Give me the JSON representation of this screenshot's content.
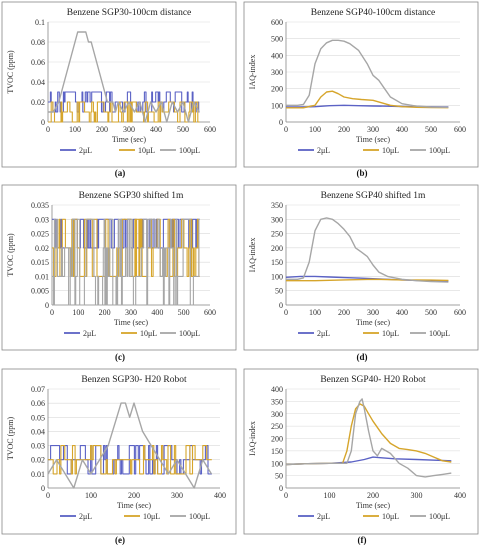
{
  "chart_data": [
    {
      "type": "line",
      "caption": "(a)",
      "title": "Benzene SGP30-100cm distance",
      "xlabel": "Time (sec)",
      "ylabel": "TVOC (ppm)",
      "xlim": [
        0,
        600
      ],
      "ylim": [
        0,
        0.1
      ],
      "xticks": [
        0,
        100,
        200,
        300,
        400,
        500,
        600
      ],
      "yticks": [
        0,
        0.02,
        0.04,
        0.06,
        0.08,
        0.1
      ],
      "ytick_labels": [
        "0",
        "0.02",
        "0.04",
        "0.06",
        "0.08",
        "0.1"
      ],
      "legend_position": "bottom",
      "series": [
        {
          "name": "2μL",
          "color": "#5b62c5",
          "noise": true,
          "x_start": 0,
          "x_end": 560,
          "levels": [
            0.02,
            0.01,
            0.03
          ],
          "seed": 11,
          "x": [
            0,
            560
          ],
          "y": [
            0.02,
            0.02
          ]
        },
        {
          "name": "10μL",
          "color": "#d6a52b",
          "noise": true,
          "x_start": 0,
          "x_end": 560,
          "levels": [
            0.01,
            0.02,
            0
          ],
          "seed": 23,
          "x": [
            0,
            560
          ],
          "y": [
            0.015,
            0.015
          ]
        },
        {
          "name": "100μL",
          "color": "#a6a6a6",
          "noise": false,
          "x": [
            0,
            20,
            40,
            60,
            80,
            100,
            110,
            120,
            140,
            150,
            160,
            180,
            200,
            220,
            240,
            250,
            260,
            280,
            300,
            320,
            340,
            360,
            380,
            400,
            420,
            440,
            460,
            480,
            500,
            520,
            540,
            560
          ],
          "y": [
            0.01,
            0.01,
            0.02,
            0.04,
            0.06,
            0.08,
            0.09,
            0.09,
            0.09,
            0.08,
            0.08,
            0.06,
            0.04,
            0.02,
            0.02,
            0.01,
            0.02,
            0.01,
            0.02,
            0.01,
            0.02,
            0,
            0.02,
            0.01,
            0.02,
            0,
            0.02,
            0.01,
            0.02,
            0,
            0.02,
            0.01
          ]
        }
      ]
    },
    {
      "type": "line",
      "caption": "(b)",
      "title": "Benzene SGP40-100cm distance",
      "xlabel": "Time (sec)",
      "ylabel": "IAQ-index",
      "xlim": [
        0,
        600
      ],
      "ylim": [
        0,
        600
      ],
      "xticks": [
        0,
        100,
        200,
        300,
        400,
        500,
        600
      ],
      "yticks": [
        0,
        100,
        200,
        300,
        400,
        500,
        600
      ],
      "ytick_labels": [
        "0",
        "100",
        "200",
        "300",
        "400",
        "500",
        "600"
      ],
      "legend_position": "bottom",
      "series": [
        {
          "name": "2μL",
          "color": "#5b62c5",
          "noise": false,
          "x": [
            0,
            50,
            100,
            150,
            200,
            250,
            300,
            350,
            400,
            450,
            500,
            560
          ],
          "y": [
            90,
            90,
            92,
            98,
            100,
            98,
            96,
            95,
            93,
            92,
            91,
            90
          ]
        },
        {
          "name": "10μL",
          "color": "#d6a52b",
          "noise": false,
          "x": [
            0,
            60,
            100,
            120,
            140,
            160,
            180,
            200,
            230,
            260,
            300,
            330,
            360,
            400,
            450,
            500,
            560
          ],
          "y": [
            85,
            85,
            100,
            150,
            180,
            185,
            170,
            150,
            140,
            135,
            130,
            115,
            100,
            92,
            88,
            87,
            86
          ]
        },
        {
          "name": "100μL",
          "color": "#a6a6a6",
          "noise": false,
          "x": [
            0,
            40,
            60,
            80,
            100,
            120,
            140,
            160,
            180,
            200,
            220,
            250,
            280,
            300,
            320,
            340,
            360,
            400,
            450,
            500,
            560
          ],
          "y": [
            100,
            100,
            105,
            160,
            350,
            440,
            475,
            490,
            490,
            485,
            470,
            430,
            350,
            280,
            250,
            200,
            150,
            110,
            95,
            90,
            88
          ]
        }
      ]
    },
    {
      "type": "line",
      "caption": "(c)",
      "title": "Benzene SGP30 shifted 1m",
      "xlabel": "Time (sec)",
      "ylabel": "TVOC (ppm)",
      "xlim": [
        0,
        600
      ],
      "ylim": [
        0,
        0.035
      ],
      "xticks": [
        0,
        100,
        200,
        300,
        400,
        500,
        600
      ],
      "yticks": [
        0,
        0.005,
        0.01,
        0.015,
        0.02,
        0.025,
        0.03,
        0.035
      ],
      "ytick_labels": [
        "0",
        "0.005",
        "0.01",
        "0.015",
        "0.02",
        "0.025",
        "0.03",
        "0.035"
      ],
      "legend_position": "bottom",
      "series": [
        {
          "name": "2μL",
          "color": "#5b62c5",
          "noise": true,
          "x_start": 0,
          "x_end": 560,
          "levels": [
            0.03,
            0.02
          ],
          "seed": 37,
          "x": [
            0,
            560
          ],
          "y": [
            0.025,
            0.025
          ]
        },
        {
          "name": "10μL",
          "color": "#d6a52b",
          "noise": true,
          "x_start": 0,
          "x_end": 560,
          "levels": [
            0.02,
            0.01,
            0.03
          ],
          "seed": 41,
          "x": [
            0,
            560
          ],
          "y": [
            0.02,
            0.02
          ]
        },
        {
          "name": "100μL",
          "color": "#a6a6a6",
          "noise": true,
          "x_start": 0,
          "x_end": 560,
          "levels": [
            0.01,
            0.03,
            0.02,
            0
          ],
          "seed": 53,
          "x": [
            0,
            560
          ],
          "y": [
            0.015,
            0.015
          ]
        }
      ]
    },
    {
      "type": "line",
      "caption": "(d)",
      "title": "Benzene SGP40 shifted 1m",
      "xlabel": "Time (sec)",
      "ylabel": "IAQ-index",
      "xlim": [
        0,
        600
      ],
      "ylim": [
        0,
        350
      ],
      "xticks": [
        0,
        100,
        200,
        300,
        400,
        500,
        600
      ],
      "yticks": [
        0,
        50,
        100,
        150,
        200,
        250,
        300,
        350
      ],
      "ytick_labels": [
        "0",
        "50",
        "100",
        "150",
        "200",
        "250",
        "300",
        "350"
      ],
      "legend_position": "bottom",
      "series": [
        {
          "name": "2μL",
          "color": "#5b62c5",
          "noise": false,
          "x": [
            0,
            50,
            100,
            150,
            200,
            250,
            300,
            350,
            400,
            450,
            500,
            560
          ],
          "y": [
            97,
            100,
            100,
            98,
            96,
            94,
            92,
            90,
            88,
            86,
            85,
            84
          ]
        },
        {
          "name": "10μL",
          "color": "#d6a52b",
          "noise": false,
          "x": [
            0,
            100,
            200,
            300,
            400,
            500,
            560
          ],
          "y": [
            85,
            85,
            88,
            90,
            88,
            87,
            86
          ]
        },
        {
          "name": "100μL",
          "color": "#a6a6a6",
          "noise": false,
          "x": [
            0,
            40,
            60,
            80,
            100,
            120,
            140,
            160,
            180,
            200,
            220,
            240,
            260,
            280,
            300,
            320,
            350,
            400,
            450,
            500,
            560
          ],
          "y": [
            90,
            90,
            95,
            150,
            260,
            300,
            305,
            300,
            285,
            265,
            240,
            200,
            185,
            170,
            140,
            115,
            100,
            90,
            85,
            82,
            80
          ]
        }
      ]
    },
    {
      "type": "line",
      "caption": "(e)",
      "title": "Benzen SGP30- H20 Robot",
      "xlabel": "Time (sec)",
      "ylabel": "TVOC (ppm)",
      "xlim": [
        0,
        400
      ],
      "ylim": [
        0,
        0.07
      ],
      "xticks": [
        0,
        100,
        200,
        300,
        400
      ],
      "yticks": [
        0,
        0.01,
        0.02,
        0.03,
        0.04,
        0.05,
        0.06,
        0.07
      ],
      "ytick_labels": [
        "0",
        "0.01",
        "0.02",
        "0.03",
        "0.04",
        "0.05",
        "0.06",
        "0.07"
      ],
      "legend_position": "bottom",
      "series": [
        {
          "name": "2μL",
          "color": "#5b62c5",
          "noise": true,
          "x_start": 0,
          "x_end": 380,
          "levels": [
            0.02,
            0.01,
            0.03
          ],
          "seed": 61,
          "x": [
            0,
            380
          ],
          "y": [
            0.02,
            0.02
          ]
        },
        {
          "name": "10μL",
          "color": "#d6a52b",
          "noise": true,
          "x_start": 0,
          "x_end": 380,
          "levels": [
            0.02,
            0.03,
            0.01
          ],
          "seed": 67,
          "x": [
            0,
            380
          ],
          "y": [
            0.025,
            0.025
          ]
        },
        {
          "name": "100μL",
          "color": "#a6a6a6",
          "noise": false,
          "x": [
            0,
            20,
            40,
            60,
            80,
            100,
            120,
            140,
            150,
            160,
            170,
            180,
            190,
            200,
            210,
            220,
            240,
            260,
            280,
            300,
            320,
            340,
            360,
            380
          ],
          "y": [
            0.01,
            0.02,
            0.01,
            0,
            0.02,
            0.01,
            0.02,
            0.03,
            0.04,
            0.05,
            0.06,
            0.06,
            0.05,
            0.06,
            0.05,
            0.04,
            0.03,
            0.02,
            0.01,
            0.02,
            0.01,
            0,
            0.02,
            0.01
          ]
        }
      ]
    },
    {
      "type": "line",
      "caption": "(f)",
      "title": "Benzen SGP40- H20 Robot",
      "xlabel": "Time (sec)",
      "ylabel": "IAQ-index",
      "xlim": [
        0,
        400
      ],
      "ylim": [
        0,
        400
      ],
      "xticks": [
        0,
        100,
        200,
        300,
        400
      ],
      "yticks": [
        0,
        50,
        100,
        150,
        200,
        250,
        300,
        350,
        400
      ],
      "ytick_labels": [
        "0",
        "50",
        "100",
        "150",
        "200",
        "250",
        "300",
        "350",
        "400"
      ],
      "legend_position": "bottom",
      "series": [
        {
          "name": "2μL",
          "color": "#5b62c5",
          "noise": false,
          "x": [
            0,
            50,
            100,
            150,
            180,
            200,
            220,
            250,
            300,
            350,
            380
          ],
          "y": [
            95,
            98,
            100,
            105,
            115,
            125,
            122,
            118,
            115,
            112,
            110
          ]
        },
        {
          "name": "10μL",
          "color": "#d6a52b",
          "noise": false,
          "x": [
            0,
            50,
            100,
            130,
            140,
            150,
            160,
            170,
            180,
            190,
            200,
            220,
            240,
            260,
            280,
            300,
            320,
            340,
            360,
            380
          ],
          "y": [
            95,
            98,
            100,
            100,
            150,
            250,
            320,
            340,
            330,
            300,
            270,
            220,
            180,
            160,
            155,
            150,
            140,
            125,
            110,
            105
          ]
        },
        {
          "name": "100μL",
          "color": "#a6a6a6",
          "noise": false,
          "x": [
            0,
            50,
            100,
            140,
            150,
            160,
            170,
            175,
            180,
            190,
            200,
            210,
            220,
            230,
            240,
            250,
            260,
            280,
            300,
            320,
            340,
            360,
            380
          ],
          "y": [
            95,
            98,
            100,
            100,
            150,
            300,
            350,
            360,
            320,
            230,
            150,
            130,
            160,
            150,
            140,
            120,
            100,
            80,
            50,
            45,
            50,
            55,
            60
          ]
        }
      ]
    }
  ]
}
